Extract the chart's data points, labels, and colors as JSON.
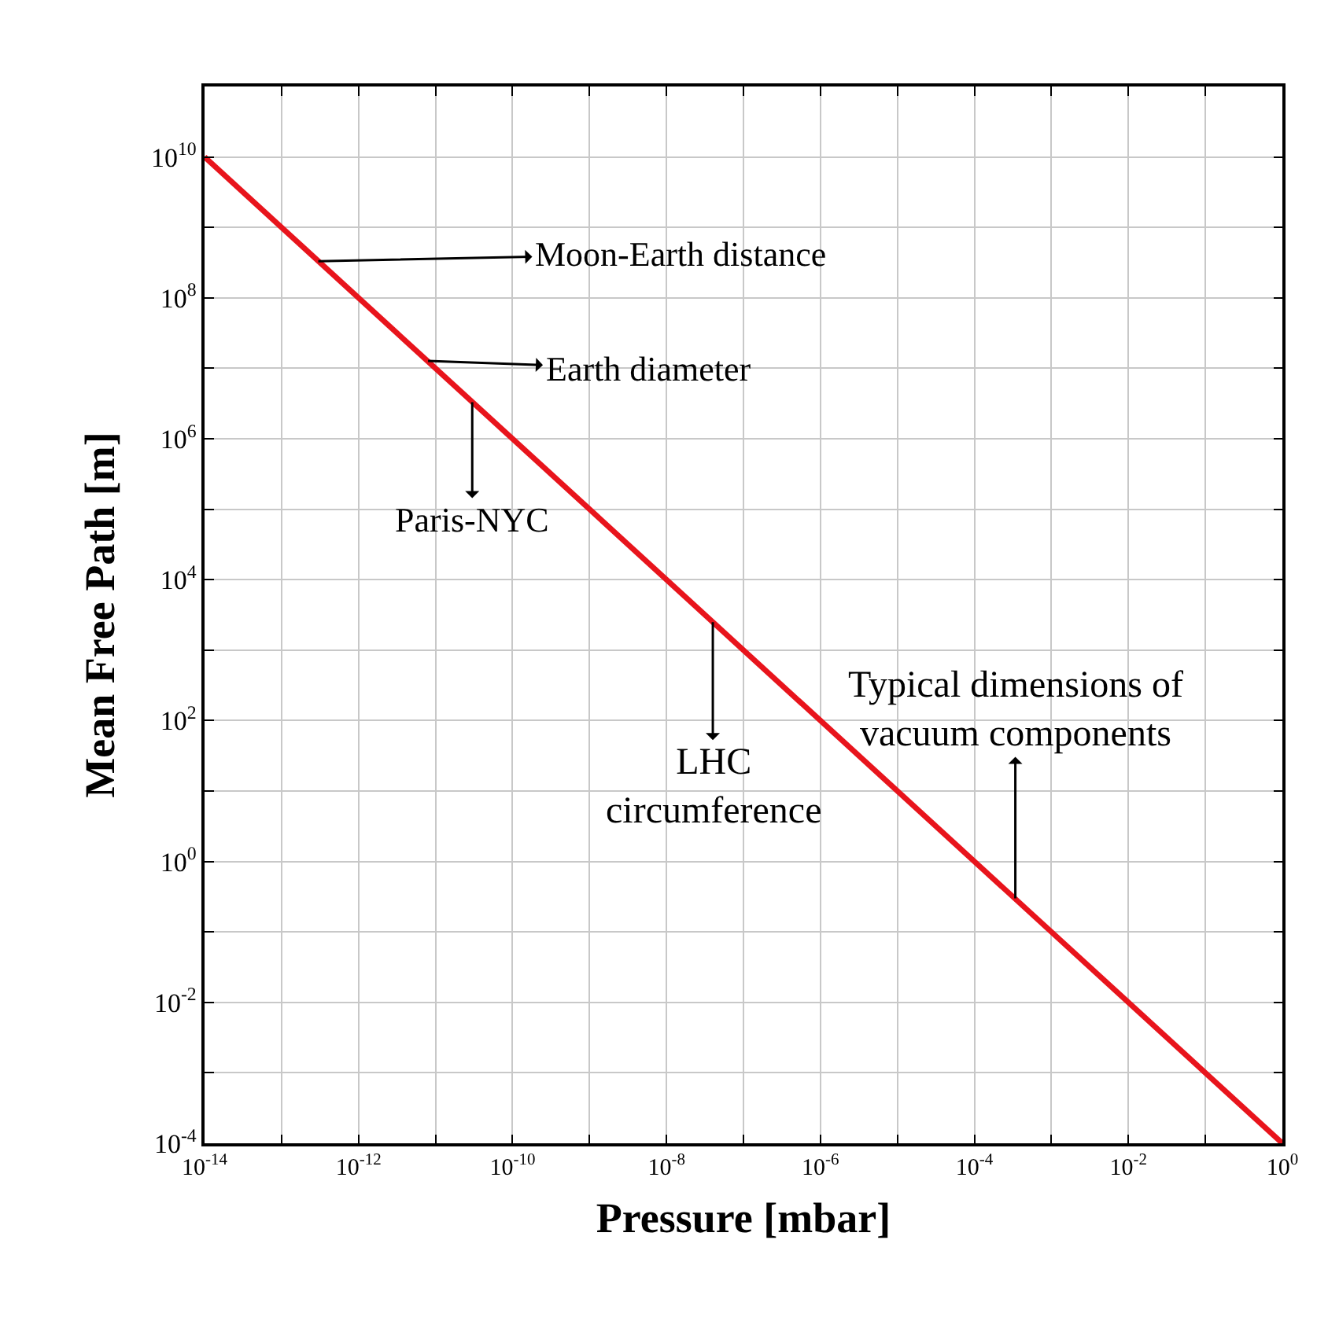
{
  "chart_data": {
    "type": "line",
    "xlabel": "Pressure [mbar]",
    "ylabel": "Mean Free Path [m]",
    "log": "xy",
    "grid": true,
    "marker": "none",
    "line_style": "solid",
    "x": [
      1e-14,
      1.0
    ],
    "series": [
      {
        "color": "#e8141c",
        "values": [
          10000000000.0,
          0.0001
        ]
      }
    ],
    "xlim": [
      1e-14,
      1.0
    ],
    "ylim": [
      0.0001,
      100000000000.0
    ],
    "xticks": [
      {
        "value": 1e-14,
        "label": "10$^{-14}$"
      },
      {
        "value": 1e-13,
        "label": null
      },
      {
        "value": 1e-12,
        "label": "10$^{-12}$"
      },
      {
        "value": 1e-11,
        "label": null
      },
      {
        "value": 1e-10,
        "label": "10$^{-10}$"
      },
      {
        "value": 1e-09,
        "label": null
      },
      {
        "value": 1e-08,
        "label": "10$^{-8}$"
      },
      {
        "value": 1e-07,
        "label": null
      },
      {
        "value": 1e-06,
        "label": "10$^{-6}$"
      },
      {
        "value": 1e-05,
        "label": null
      },
      {
        "value": 0.0001,
        "label": "10$^{-4}$"
      },
      {
        "value": 0.001,
        "label": null
      },
      {
        "value": 0.01,
        "label": "10$^{-2}$"
      },
      {
        "value": 0.1,
        "label": null
      },
      {
        "value": 1.0,
        "label": "10$^{0}$"
      }
    ],
    "yticks": [
      {
        "value": 0.0001,
        "label": "10$^{-4}$"
      },
      {
        "value": 0.001,
        "label": null
      },
      {
        "value": 0.01,
        "label": "10$^{-2}$"
      },
      {
        "value": 0.1,
        "label": null
      },
      {
        "value": 1.0,
        "label": "10$^{0}$"
      },
      {
        "value": 10.0,
        "label": null
      },
      {
        "value": 100.0,
        "label": "10$^{2}$"
      },
      {
        "value": 1000.0,
        "label": null
      },
      {
        "value": 10000.0,
        "label": "10$^{4}$"
      },
      {
        "value": 100000.0,
        "label": null
      },
      {
        "value": 1000000.0,
        "label": "10$^{6}$"
      },
      {
        "value": 10000000.0,
        "label": null
      },
      {
        "value": 100000000.0,
        "label": "10$^{8}$"
      },
      {
        "value": 1000000000.0,
        "label": null
      },
      {
        "value": 10000000000.0,
        "label": "10$^{10}$"
      },
      {
        "value": 100000000000.0,
        "label": null
      }
    ],
    "annotations": [
      {
        "text": "Moon-Earth distance",
        "x": 3e-13,
        "y": 330000000.0
      },
      {
        "text": "Earth diameter",
        "x": 8e-12,
        "y": 12700000.0
      },
      {
        "text": "Paris-NYC",
        "x": 3e-11,
        "y": 3300000.0
      },
      {
        "text": "LHC circumference",
        "x": 4e-08,
        "y": 2500.0
      },
      {
        "text": "Typical dimensions of vacuum components",
        "x": 0.00034,
        "y": 0.3
      }
    ]
  }
}
